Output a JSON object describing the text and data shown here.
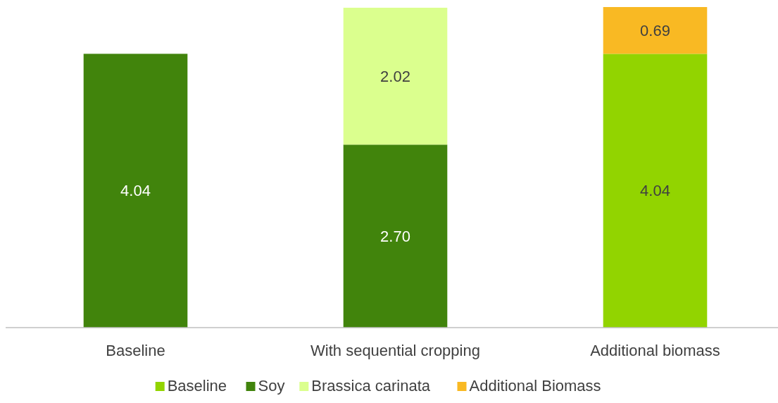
{
  "chart_data": {
    "type": "bar",
    "stacked": true,
    "categories": [
      "Baseline",
      "With sequential cropping",
      "Additional biomass"
    ],
    "series": [
      {
        "name": "Baseline",
        "color": "#92d400",
        "values": [
          null,
          null,
          4.04
        ],
        "value_labels": [
          null,
          null,
          "4.04"
        ]
      },
      {
        "name": "Soy",
        "color": "#41840c",
        "values": [
          4.04,
          2.7,
          null
        ],
        "value_labels": [
          "4.04",
          "2.70",
          null
        ]
      },
      {
        "name": "Brassica carinata",
        "color": "#dbff8e",
        "values": [
          null,
          2.02,
          null
        ],
        "value_labels": [
          null,
          "2.02",
          null
        ]
      },
      {
        "name": "Additional Biomass",
        "color": "#f9b923",
        "values": [
          null,
          null,
          0.69
        ],
        "value_labels": [
          null,
          null,
          "0.69"
        ]
      }
    ],
    "legend": "bottom"
  }
}
